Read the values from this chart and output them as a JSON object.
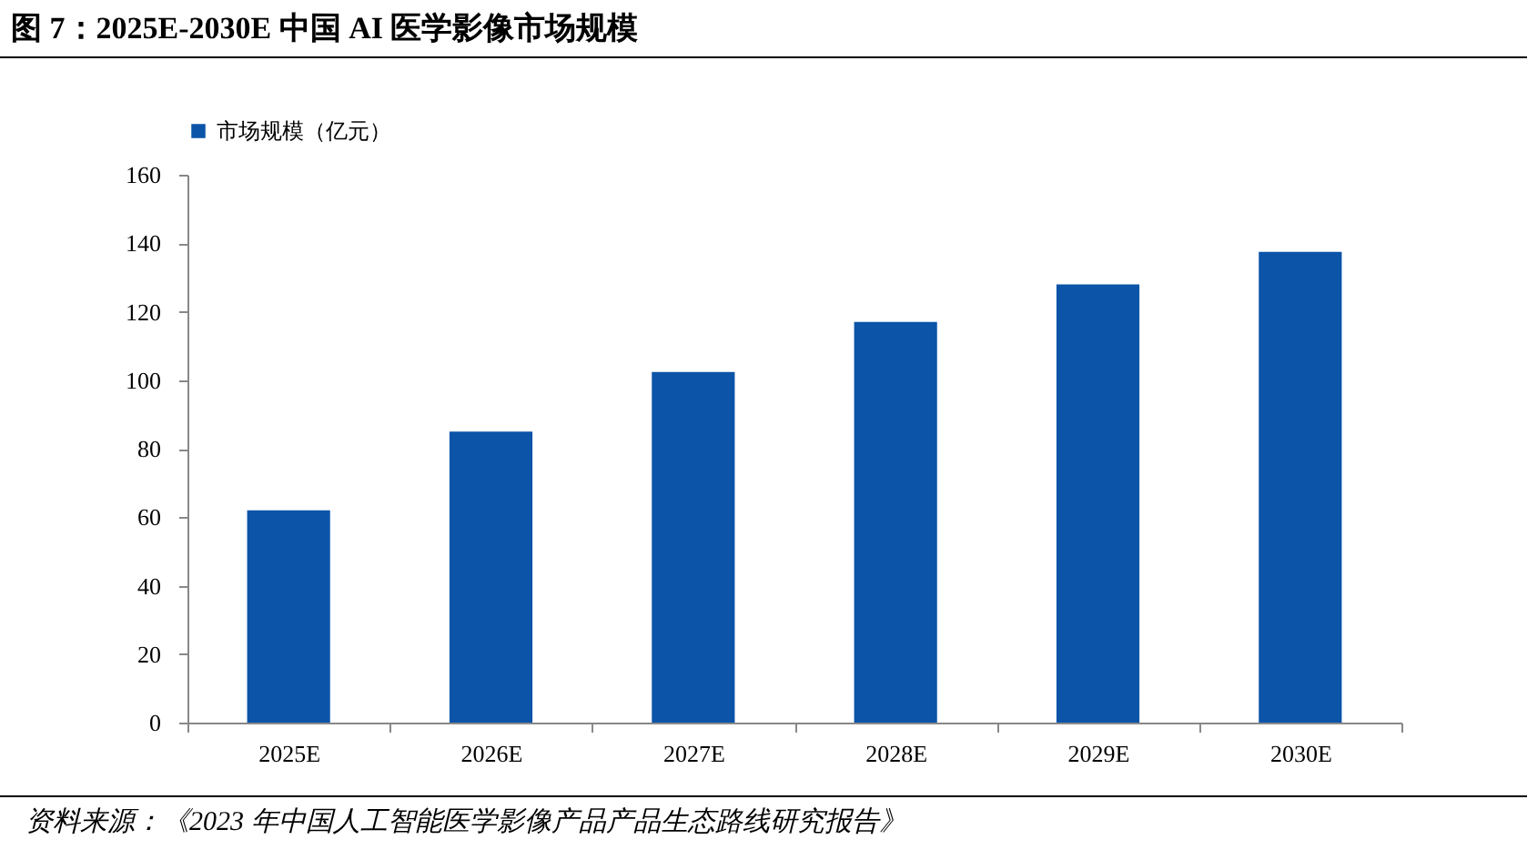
{
  "chart_data": {
    "type": "bar",
    "title": "图 7：2025E-2030E 中国 AI 医学影像市场规模",
    "categories": [
      "2025E",
      "2026E",
      "2027E",
      "2028E",
      "2029E",
      "2030E"
    ],
    "series": [
      {
        "name": "市场规模（亿元）",
        "color": "#0b54a8",
        "values": [
          62,
          85,
          102.4,
          117,
          128,
          137.5
        ]
      }
    ],
    "ylim": [
      0,
      160
    ],
    "yticks": [
      0,
      20,
      40,
      60,
      80,
      100,
      120,
      140,
      160
    ],
    "grid": false,
    "legend": "top",
    "annotations": [
      "资料来源：《2023 年中国人工智能医学影像产品产品生态路线研究报告》"
    ]
  }
}
